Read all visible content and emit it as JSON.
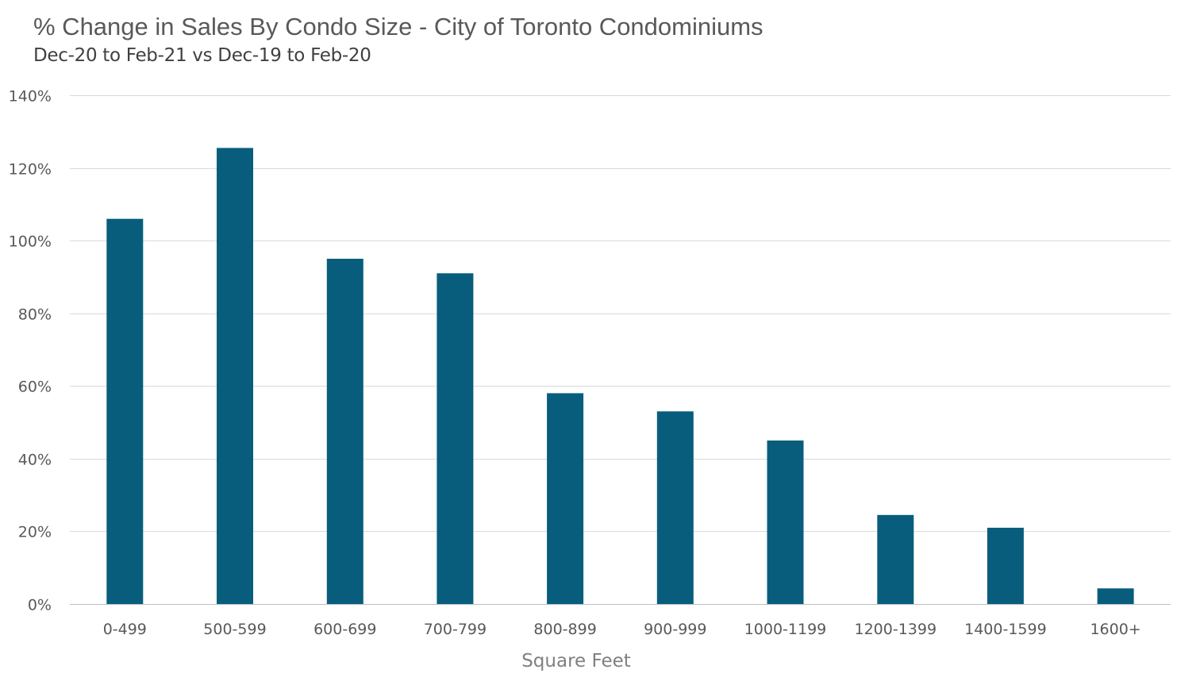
{
  "chart_data": {
    "type": "bar",
    "title": "% Change in Sales By Condo Size - City of Toronto Condominiums",
    "subtitle": "Dec-20 to Feb-21 vs Dec-19 to Feb-20",
    "xlabel": "Square Feet",
    "ylabel": "",
    "categories": [
      "0-499",
      "500-599",
      "600-699",
      "700-799",
      "800-899",
      "900-999",
      "1000-1199",
      "1200-1399",
      "1400-1599",
      "1600+"
    ],
    "values": [
      106,
      125.5,
      95,
      91,
      58,
      53,
      45,
      24.5,
      21,
      4.3
    ],
    "ylim": [
      0,
      140
    ],
    "yticks": [
      0,
      20,
      40,
      60,
      80,
      100,
      120,
      140
    ],
    "ytick_labels": [
      "0%",
      "20%",
      "40%",
      "60%",
      "80%",
      "100%",
      "120%",
      "140%"
    ],
    "grid": true,
    "legend": "none",
    "colors": {
      "bar": "#085D7D",
      "grid": "#D9D9D9",
      "axis": "#BFBFBF"
    }
  }
}
